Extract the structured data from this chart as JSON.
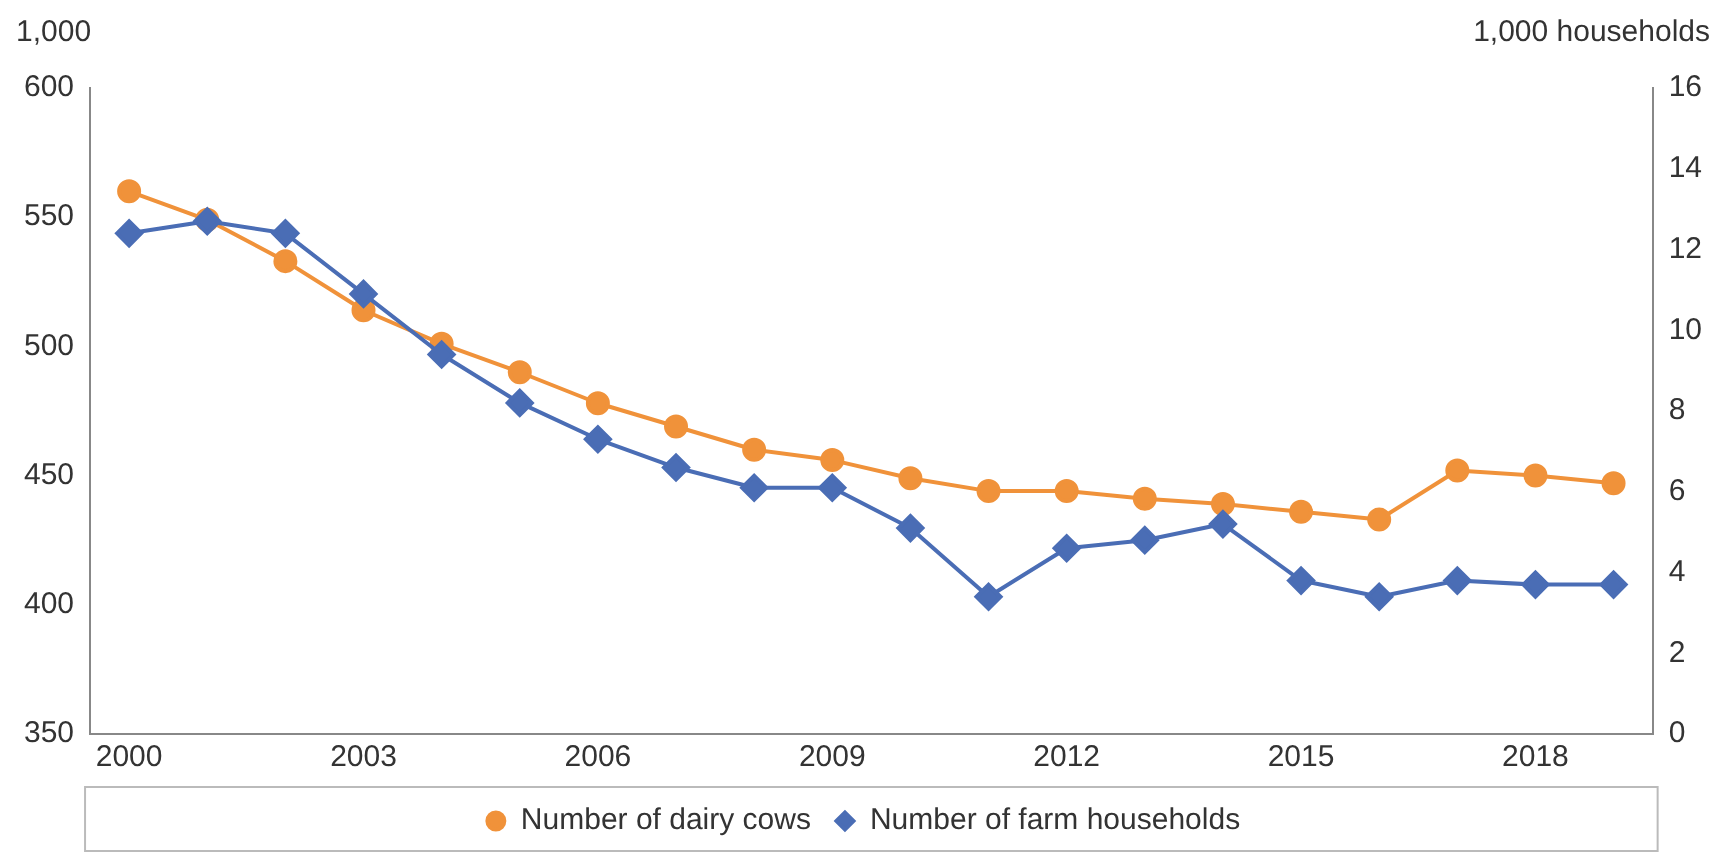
{
  "chart_data": {
    "type": "line",
    "ylabel": "1,000",
    "y2label": "1,000 households",
    "x": [
      2000,
      2001,
      2002,
      2003,
      2004,
      2005,
      2006,
      2007,
      2008,
      2009,
      2010,
      2011,
      2012,
      2013,
      2014,
      2015,
      2016,
      2017,
      2018,
      2019
    ],
    "series": [
      {
        "name": "Number of dairy cows",
        "color": "#f0923a",
        "marker": "circle",
        "values": [
          560,
          549,
          533,
          514,
          501,
          490,
          478,
          469,
          460,
          456,
          449,
          444,
          444,
          441,
          439,
          436,
          433,
          452,
          450,
          447
        ]
      },
      {
        "name": "Number of farm households",
        "color": "#4a6db5",
        "marker": "diamond",
        "axis": "y2",
        "values": [
          12.4,
          12.7,
          12.4,
          10.9,
          9.4,
          8.2,
          7.3,
          6.6,
          6.1,
          6.1,
          5.1,
          3.4,
          4.6,
          4.8,
          5.2,
          3.8,
          3.4,
          3.8,
          3.7,
          3.7
        ]
      }
    ],
    "xlim": [
      1999.5,
      2019.5
    ],
    "xticks": [
      2000,
      2003,
      2006,
      2009,
      2012,
      2015,
      2018
    ],
    "ylim": [
      350,
      600
    ],
    "yticks": [
      350,
      400,
      450,
      500,
      550,
      600
    ],
    "y2lim": [
      0,
      16
    ],
    "y2ticks": [
      0,
      2,
      4,
      6,
      8,
      10,
      12,
      14,
      16
    ],
    "grid": false,
    "legend": "bottom"
  }
}
